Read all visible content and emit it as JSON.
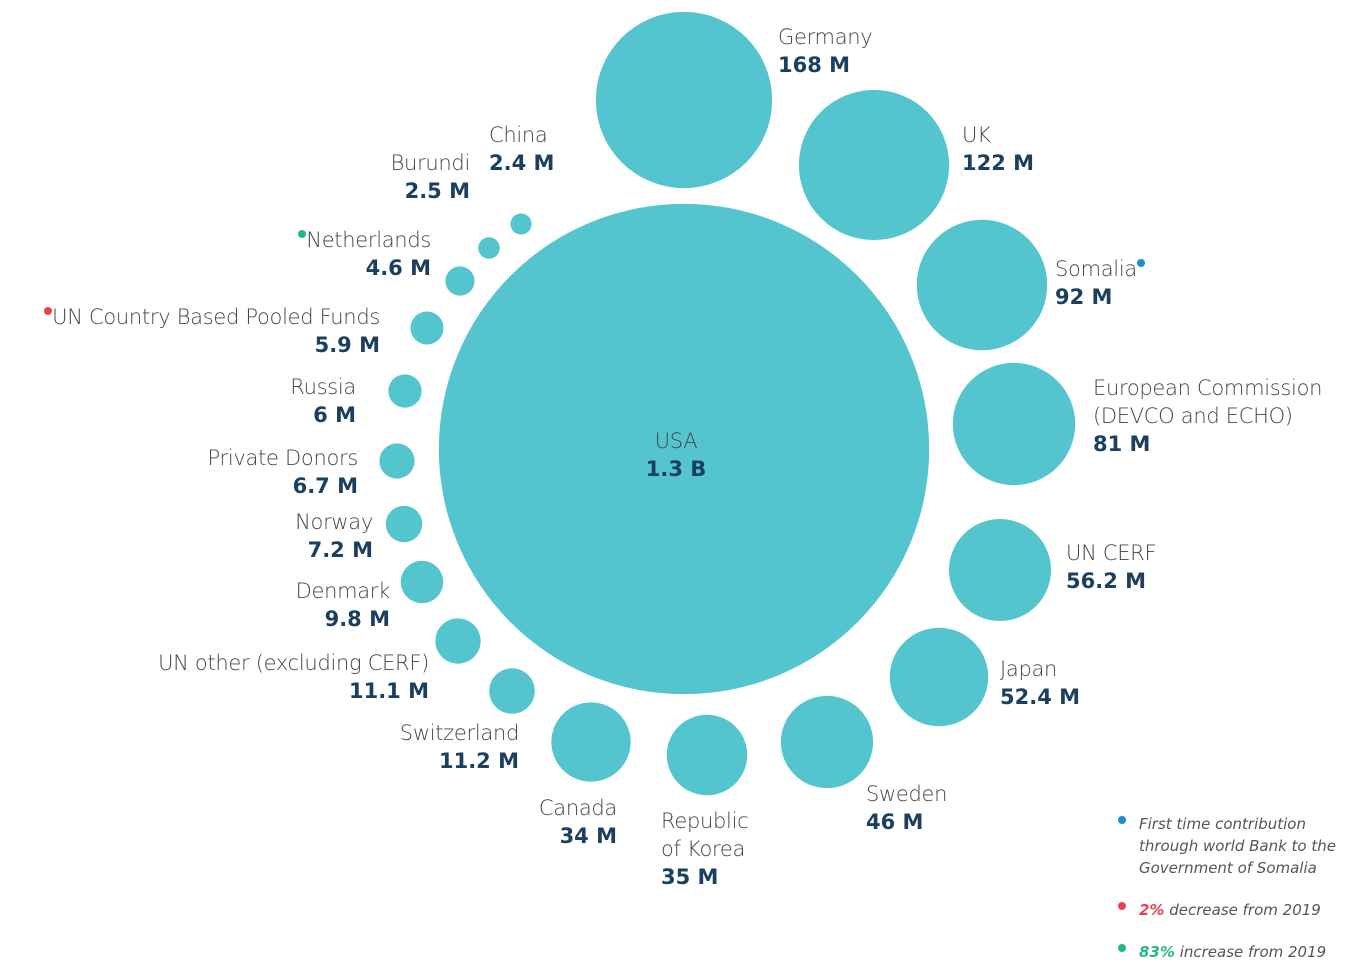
{
  "chart_data": {
    "type": "bubble",
    "color": "#54c5ce",
    "categories": [
      "USA",
      "Germany",
      "UK",
      "Somalia",
      "European Commission (DEVCO and ECHO)",
      "UN CERF",
      "Japan",
      "Sweden",
      "Republic of Korea",
      "Canada",
      "Switzerland",
      "UN other (excluding CERF)",
      "Denmark",
      "Norway",
      "Private Donors",
      "Russia",
      "UN Country Based Pooled Funds",
      "Netherlands",
      "Burundi",
      "China"
    ],
    "values": [
      1300,
      168,
      122,
      92,
      81,
      56.2,
      52.4,
      46,
      35,
      34,
      11.2,
      11.1,
      9.8,
      7.2,
      6.7,
      6,
      5.9,
      4.6,
      2.5,
      2.4
    ],
    "value_labels": [
      "1.3 B",
      "168 M",
      "122 M",
      "92 M",
      "81 M",
      "56.2 M",
      "52.4 M",
      "46 M",
      "35 M",
      "34 M",
      "11.2 M",
      "11.1 M",
      "9.8 M",
      "7.2 M",
      "6.7 M",
      "6 M",
      "5.9 M",
      "4.6 M",
      "2.5 M",
      "2.4 M"
    ],
    "notes": [
      {
        "color": "#1a8fc9",
        "text": "First time contribution through world Bank to the Government of Somalia",
        "applies_to": "Somalia"
      },
      {
        "color": "#e8434e",
        "highlight": "2%",
        "text": "decrease from 2019",
        "applies_to": "UN Country Based Pooled Funds"
      },
      {
        "color": "#1fb88a",
        "highlight": "83%",
        "text": "increase from 2019",
        "applies_to": "Netherlands"
      }
    ]
  }
}
